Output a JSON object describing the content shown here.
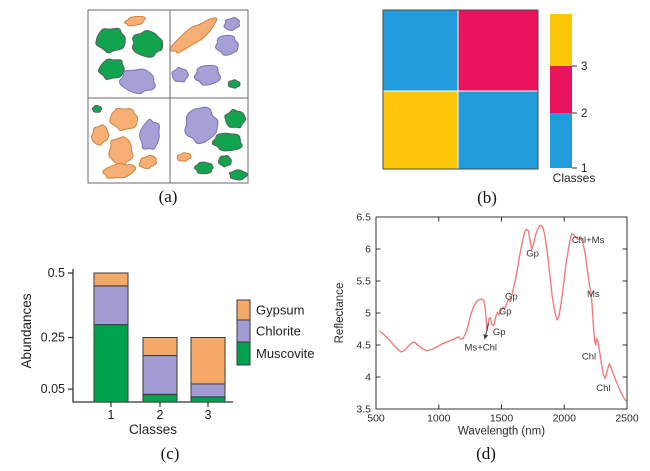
{
  "captions": {
    "a": "(a)",
    "b": "(b)",
    "c": "(c)",
    "d": "(d)"
  },
  "panel_a": {
    "description": "four-quadrant mineral sample map",
    "border_color": "#6b6b6b",
    "colors": {
      "green": {
        "fill": "#12a34f",
        "stroke": "#55605a"
      },
      "purple": {
        "fill": "#a5a0d5",
        "stroke": "#7a73b4"
      },
      "orange": {
        "fill": "#f6ae74",
        "stroke": "#c9853e"
      }
    },
    "blob_fields": [
      "color",
      "cx",
      "cy",
      "rx",
      "ry",
      "rotation_deg"
    ],
    "blobs": [
      [
        "orange",
        135,
        21,
        10,
        4.5,
        -12
      ],
      [
        "green",
        111,
        40,
        15,
        12,
        0
      ],
      [
        "green",
        147,
        44,
        15,
        13,
        5
      ],
      [
        "green",
        112,
        69,
        13,
        10,
        -8
      ],
      [
        "purple",
        138,
        81,
        18,
        12,
        3
      ],
      [
        "orange",
        193,
        36,
        27,
        7.5,
        -35
      ],
      [
        "purple",
        232,
        24,
        8,
        6,
        -20
      ],
      [
        "purple",
        227,
        45,
        11,
        10,
        10
      ],
      [
        "purple",
        180,
        75,
        8,
        7,
        0
      ],
      [
        "purple",
        208,
        75,
        13,
        10,
        -5
      ],
      [
        "green",
        234,
        84,
        6,
        4,
        0
      ],
      [
        "green",
        97,
        109,
        4.5,
        3.5,
        0
      ],
      [
        "orange",
        124,
        119,
        14,
        11,
        5
      ],
      [
        "orange",
        100,
        135,
        8,
        10,
        20
      ],
      [
        "purple",
        150,
        135,
        10,
        15,
        8
      ],
      [
        "orange",
        121,
        151,
        12,
        14,
        0
      ],
      [
        "orange",
        119,
        171,
        16,
        7,
        -8
      ],
      [
        "orange",
        148,
        162,
        9,
        6,
        -20
      ],
      [
        "purple",
        201,
        125,
        16,
        18,
        5
      ],
      [
        "green",
        235,
        119,
        10,
        9,
        0
      ],
      [
        "green",
        228,
        142,
        15,
        9,
        3
      ],
      [
        "orange",
        184,
        157,
        7,
        4,
        -10
      ],
      [
        "green",
        204,
        168,
        9,
        6,
        0
      ],
      [
        "green",
        225,
        161,
        6.5,
        5.5,
        0
      ],
      [
        "green",
        238,
        175,
        8.5,
        5,
        0
      ]
    ]
  },
  "chart_data": [
    {
      "id": "b",
      "type": "heatmap",
      "title": "",
      "grid_classes": [
        [
          1,
          2
        ],
        [
          3,
          1
        ]
      ],
      "class_colors": {
        "1": "#1f9cd9",
        "2": "#e9135e",
        "3": "#fdc608"
      },
      "colorbar": {
        "title": "Classes",
        "segments_bottom_to_top": [
          {
            "label": "1",
            "color": "#1f9cd9"
          },
          {
            "label": "2",
            "color": "#e9135e"
          },
          {
            "label": "3",
            "color": "#fdc608"
          }
        ]
      },
      "legend_position": "right"
    },
    {
      "id": "c",
      "type": "bar",
      "stacked": true,
      "xlabel": "Classes",
      "ylabel": "Abundances",
      "categories": [
        "1",
        "2",
        "3"
      ],
      "series": [
        {
          "name": "Muscovite",
          "color": "#00a34d",
          "values": [
            0.3,
            0.03,
            0.02
          ]
        },
        {
          "name": "Chlorite",
          "color": "#a29cd4",
          "values": [
            0.15,
            0.15,
            0.05
          ]
        },
        {
          "name": "Gypsum",
          "color": "#f5a968",
          "values": [
            0.05,
            0.07,
            0.18
          ]
        }
      ],
      "totals": [
        0.5,
        0.25,
        0.25
      ],
      "ylim": [
        0,
        0.5
      ],
      "yticks": [
        {
          "v": 0.05,
          "label": "0.05"
        },
        {
          "v": 0.25,
          "label": "0.25"
        },
        {
          "v": 0.5,
          "label": "0.5"
        }
      ],
      "legend_order": [
        "Gypsum",
        "Chlorite",
        "Muscovite"
      ],
      "legend_position": "right",
      "grid": false
    },
    {
      "id": "d",
      "type": "line",
      "xlabel": "Wavelength (nm)",
      "ylabel": "Reflectance",
      "xlim": [
        500,
        2500
      ],
      "ylim": [
        3.5,
        6.5
      ],
      "xticks": [
        {
          "v": 500,
          "label": "500"
        },
        {
          "v": 1000,
          "label": "1000"
        },
        {
          "v": 1500,
          "label": "1500"
        },
        {
          "v": 2000,
          "label": "2000"
        },
        {
          "v": 2500,
          "label": "2500"
        }
      ],
      "yticks": [
        {
          "v": 3.5,
          "label": "3.5"
        },
        {
          "v": 4.0,
          "label": "4"
        },
        {
          "v": 4.5,
          "label": "4.5"
        },
        {
          "v": 5.0,
          "label": "5"
        },
        {
          "v": 5.5,
          "label": "5.5"
        },
        {
          "v": 6.0,
          "label": "6"
        },
        {
          "v": 6.5,
          "label": "6.5"
        }
      ],
      "line_color": "#f17d7d",
      "grid": false,
      "box": true,
      "points": [
        [
          530,
          4.71
        ],
        [
          560,
          4.67
        ],
        [
          600,
          4.59
        ],
        [
          640,
          4.5
        ],
        [
          670,
          4.44
        ],
        [
          700,
          4.39
        ],
        [
          730,
          4.42
        ],
        [
          765,
          4.5
        ],
        [
          800,
          4.55
        ],
        [
          835,
          4.5
        ],
        [
          870,
          4.44
        ],
        [
          905,
          4.41
        ],
        [
          945,
          4.43
        ],
        [
          985,
          4.47
        ],
        [
          1030,
          4.52
        ],
        [
          1080,
          4.56
        ],
        [
          1130,
          4.6
        ],
        [
          1158,
          4.63
        ],
        [
          1175,
          4.59
        ],
        [
          1195,
          4.61
        ],
        [
          1222,
          4.71
        ],
        [
          1252,
          4.96
        ],
        [
          1282,
          5.12
        ],
        [
          1312,
          5.2
        ],
        [
          1342,
          5.22
        ],
        [
          1360,
          5.19
        ],
        [
          1372,
          5.05
        ],
        [
          1385,
          4.72
        ],
        [
          1398,
          4.9
        ],
        [
          1410,
          4.93
        ],
        [
          1424,
          4.82
        ],
        [
          1438,
          4.8
        ],
        [
          1452,
          4.93
        ],
        [
          1468,
          5.01
        ],
        [
          1482,
          4.97
        ],
        [
          1496,
          5.04
        ],
        [
          1512,
          5.09
        ],
        [
          1526,
          5.06
        ],
        [
          1540,
          5.14
        ],
        [
          1556,
          5.21
        ],
        [
          1570,
          5.18
        ],
        [
          1585,
          5.3
        ],
        [
          1615,
          5.56
        ],
        [
          1645,
          5.9
        ],
        [
          1668,
          6.13
        ],
        [
          1685,
          6.27
        ],
        [
          1700,
          6.31
        ],
        [
          1715,
          6.28
        ],
        [
          1730,
          6.1
        ],
        [
          1741,
          5.99
        ],
        [
          1755,
          6.08
        ],
        [
          1772,
          6.22
        ],
        [
          1790,
          6.32
        ],
        [
          1807,
          6.37
        ],
        [
          1825,
          6.35
        ],
        [
          1842,
          6.25
        ],
        [
          1862,
          6.0
        ],
        [
          1885,
          5.6
        ],
        [
          1905,
          5.25
        ],
        [
          1925,
          5.02
        ],
        [
          1942,
          4.89
        ],
        [
          1958,
          4.95
        ],
        [
          1975,
          5.15
        ],
        [
          1995,
          5.45
        ],
        [
          2015,
          5.78
        ],
        [
          2040,
          6.08
        ],
        [
          2059,
          6.24
        ],
        [
          2075,
          6.22
        ],
        [
          2095,
          6.17
        ],
        [
          2112,
          6.15
        ],
        [
          2130,
          6.19
        ],
        [
          2145,
          6.12
        ],
        [
          2165,
          5.95
        ],
        [
          2185,
          5.65
        ],
        [
          2202,
          5.42
        ],
        [
          2213,
          5.32
        ],
        [
          2222,
          5.12
        ],
        [
          2232,
          4.8
        ],
        [
          2242,
          4.57
        ],
        [
          2250,
          4.5
        ],
        [
          2258,
          4.6
        ],
        [
          2266,
          4.57
        ],
        [
          2280,
          4.42
        ],
        [
          2295,
          4.22
        ],
        [
          2310,
          4.05
        ],
        [
          2325,
          3.97
        ],
        [
          2342,
          4.1
        ],
        [
          2360,
          4.21
        ],
        [
          2382,
          4.1
        ],
        [
          2408,
          3.96
        ],
        [
          2438,
          3.82
        ],
        [
          2465,
          3.71
        ],
        [
          2490,
          3.63
        ]
      ],
      "annotations": [
        {
          "text": "Gp",
          "nm": 1748,
          "refl": 5.93
        },
        {
          "text": "Chl+Ms",
          "nm": 2190,
          "refl": 6.14
        },
        {
          "text": "Ms",
          "nm": 2232,
          "refl": 5.3
        },
        {
          "text": "Gp",
          "nm": 1578,
          "refl": 5.26
        },
        {
          "text": "Gp",
          "nm": 1530,
          "refl": 5.02
        },
        {
          "text": "Gp",
          "nm": 1482,
          "refl": 4.7
        },
        {
          "text": "Ms+Chl",
          "nm": 1335,
          "refl": 4.46,
          "arrow": {
            "from_nm": 1397,
            "from_refl": 4.84,
            "to_nm": 1366,
            "to_refl": 4.59
          }
        },
        {
          "text": "Chl",
          "nm": 2197,
          "refl": 4.32
        },
        {
          "text": "Chl",
          "nm": 2312,
          "refl": 3.83
        }
      ]
    }
  ]
}
